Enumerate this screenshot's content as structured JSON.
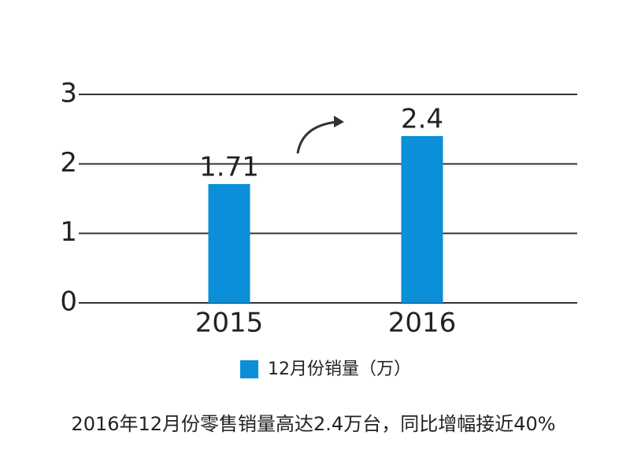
{
  "chart_data": {
    "type": "bar",
    "categories": [
      "2015",
      "2016"
    ],
    "series": [
      {
        "name": "12月份销量（万）",
        "color": "#0a8fd8",
        "values": [
          1.71,
          2.4
        ]
      }
    ],
    "ylim": [
      0,
      3
    ],
    "yticks": [
      0,
      1,
      2,
      3
    ],
    "grid": true,
    "caption": "2016年12月份零售销量高达2.4万台，同比增幅接近40%"
  }
}
